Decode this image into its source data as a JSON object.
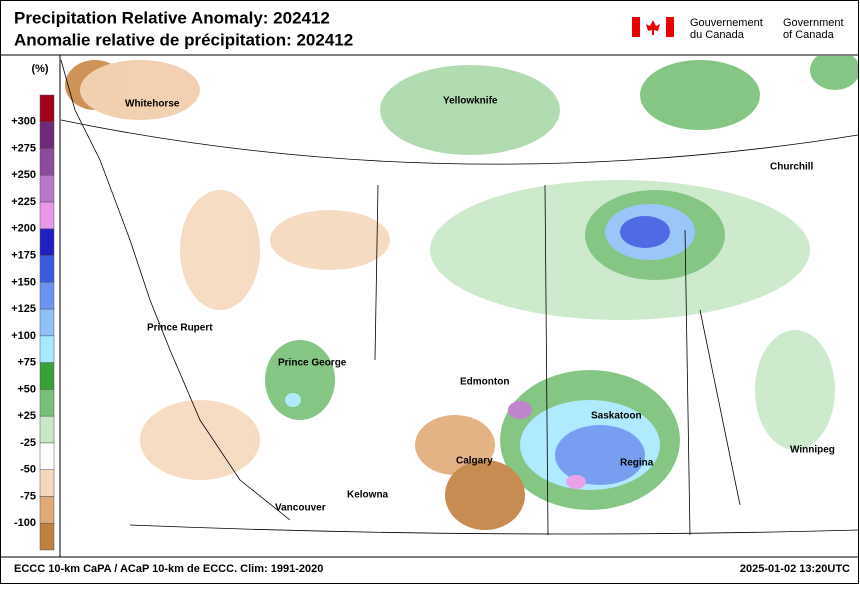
{
  "header": {
    "title_en": "Precipitation Relative Anomaly: 202412",
    "title_fr": "Anomalie relative de précipitation: 202412",
    "gov_fr": [
      "Gouvernement",
      "du Canada"
    ],
    "gov_en": [
      "Government",
      "of Canada"
    ]
  },
  "legend": {
    "unit": "(%)",
    "labels": [
      "+300",
      "+275",
      "+250",
      "+225",
      "+200",
      "+175",
      "+150",
      "+125",
      "+100",
      "+75",
      "+50",
      "+25",
      "-25",
      "-50",
      "-75",
      "-100"
    ],
    "colors": [
      "#a00018",
      "#6e2a78",
      "#8c4a9c",
      "#b878c8",
      "#e898e8",
      "#2020c0",
      "#3c5ce0",
      "#6a94f0",
      "#90c0f8",
      "#a8e8ff",
      "#38a038",
      "#78c078",
      "#c8e8c8",
      "#ffffff",
      "#f4d8bc",
      "#e0aa78",
      "#c08040"
    ]
  },
  "cities": [
    "Whitehorse",
    "Yellowknife",
    "Churchill",
    "Prince Rupert",
    "Prince George",
    "Edmonton",
    "Saskatoon",
    "Calgary",
    "Regina",
    "Winnipeg",
    "Kelowna",
    "Vancouver"
  ],
  "footer": {
    "left": "ECCC 10-km CaPA / ACaP 10-km de ECCC. Clim: 1991-2020",
    "right": "2025-01-02 13:20UTC"
  }
}
